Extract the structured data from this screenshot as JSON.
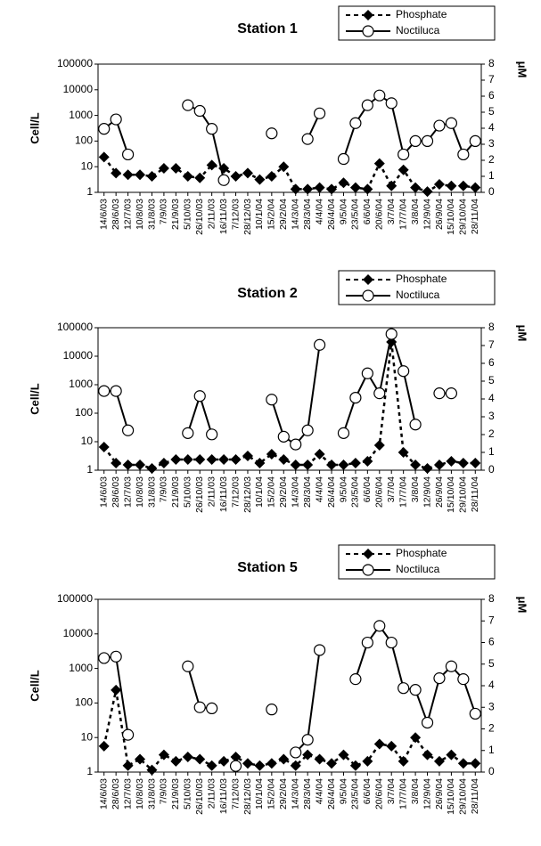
{
  "chart_data": [
    {
      "type": "line",
      "title": "Station 1",
      "ylabel": "Cell/L",
      "y2label": "μM",
      "yscale": "log",
      "ylim": [
        1,
        100000
      ],
      "yticks": [
        1,
        10,
        100,
        1000,
        10000,
        100000
      ],
      "y2lim": [
        0,
        8
      ],
      "y2ticks": [
        0,
        1,
        2,
        3,
        4,
        5,
        6,
        7,
        8
      ],
      "categories": [
        "14/6/03",
        "28/6/03",
        "12/7/03",
        "10/8/03",
        "31/8/03",
        "7/9/03",
        "21/9/03",
        "5/10/03",
        "26/10/03",
        "2/11/03",
        "16/11/03",
        "7/12/03",
        "28/12/03",
        "10/1/04",
        "15/2/04",
        "29/2/04",
        "14/3/04",
        "28/3/04",
        "4/4/04",
        "26/4/04",
        "9/5/04",
        "23/5/04",
        "6/6/04",
        "20/6/04",
        "3/7/04",
        "17/7/04",
        "3/8/04",
        "12/9/04",
        "26/9/04",
        "15/10/04",
        "29/10/04",
        "28/11/04"
      ],
      "series": [
        {
          "name": "Phosphate",
          "axis": "y2",
          "color": "#000000",
          "line_style": "dashed",
          "marker": "diamond",
          "values": [
            2.2,
            1.2,
            1.1,
            1.1,
            1.0,
            1.5,
            1.5,
            1.0,
            0.9,
            1.7,
            1.5,
            1.0,
            1.2,
            0.8,
            1.0,
            1.6,
            0.2,
            0.2,
            0.3,
            0.2,
            0.6,
            0.3,
            0.2,
            1.8,
            0.4,
            1.4,
            0.3,
            0.05,
            0.5,
            0.4,
            0.4,
            0.3
          ]
        },
        {
          "name": "Noctiluca",
          "color": "#000000",
          "line_style": "solid",
          "marker": "circle",
          "values": [
            300,
            700,
            30,
            null,
            null,
            null,
            null,
            2500,
            1500,
            300,
            3,
            null,
            null,
            null,
            200,
            null,
            null,
            120,
            1200,
            null,
            20,
            500,
            2500,
            6000,
            3000,
            30,
            100,
            100,
            400,
            500,
            30,
            100
          ]
        }
      ]
    },
    {
      "type": "line",
      "title": "Station 2",
      "ylabel": "Cell/L",
      "y2label": "μM",
      "yscale": "log",
      "ylim": [
        1,
        100000
      ],
      "yticks": [
        1,
        10,
        100,
        1000,
        10000,
        100000
      ],
      "y2lim": [
        0,
        8
      ],
      "y2ticks": [
        0,
        1,
        2,
        3,
        4,
        5,
        6,
        7,
        8
      ],
      "categories": [
        "14/6/03",
        "28/6/03",
        "12/7/03",
        "10/8/03",
        "31/8/03",
        "7/9/03",
        "21/9/03",
        "5/10/03",
        "26/10/03",
        "2/11/03",
        "16/11/03",
        "7/12/03",
        "28/12/03",
        "10/1/04",
        "15/2/04",
        "29/2/04",
        "14/3/04",
        "28/3/04",
        "4/4/04",
        "26/4/04",
        "9/5/04",
        "23/5/04",
        "6/6/04",
        "20/6/04",
        "3/7/04",
        "17/7/04",
        "3/8/04",
        "12/9/04",
        "26/9/04",
        "15/10/04",
        "29/10/04",
        "28/11/04"
      ],
      "series": [
        {
          "name": "Phosphate",
          "axis": "y2",
          "color": "#000000",
          "line_style": "dashed",
          "marker": "diamond",
          "values": [
            1.3,
            0.4,
            0.3,
            0.3,
            0.1,
            0.4,
            0.6,
            0.6,
            0.6,
            0.6,
            0.6,
            0.6,
            0.8,
            0.4,
            0.9,
            0.6,
            0.3,
            0.3,
            0.9,
            0.3,
            0.3,
            0.4,
            0.5,
            1.4,
            7.2,
            1.0,
            0.3,
            0.1,
            0.3,
            0.5,
            0.4,
            0.4
          ]
        },
        {
          "name": "Noctiluca",
          "color": "#000000",
          "line_style": "solid",
          "marker": "circle",
          "values": [
            600,
            600,
            25,
            null,
            null,
            null,
            null,
            20,
            400,
            18,
            null,
            null,
            null,
            null,
            300,
            15,
            8,
            25,
            25000,
            null,
            20,
            350,
            2500,
            500,
            60000,
            3000,
            40,
            null,
            500,
            500,
            null,
            null
          ]
        }
      ]
    },
    {
      "type": "line",
      "title": "Station 5",
      "ylabel": "Cell/L",
      "y2label": "μM",
      "yscale": "log",
      "ylim": [
        1,
        100000
      ],
      "yticks": [
        1,
        10,
        100,
        1000,
        10000,
        100000
      ],
      "y2lim": [
        0,
        8
      ],
      "y2ticks": [
        0,
        1,
        2,
        3,
        4,
        5,
        6,
        7,
        8
      ],
      "categories": [
        "14/6/03",
        "28/6/03",
        "12/7/03",
        "10/8/03",
        "31/8/03",
        "7/9/03",
        "21/9/03",
        "5/10/03",
        "26/10/03",
        "2/11/03",
        "16/11/03",
        "7/12/03",
        "28/12/03",
        "10/1/04",
        "15/2/04",
        "29/2/04",
        "14/3/04",
        "28/3/04",
        "4/4/04",
        "26/4/04",
        "9/5/04",
        "23/5/04",
        "6/6/04",
        "20/6/04",
        "3/7/04",
        "17/7/04",
        "3/8/04",
        "12/9/04",
        "26/9/04",
        "15/10/04",
        "29/10/04",
        "28/11/04"
      ],
      "series": [
        {
          "name": "Phosphate",
          "axis": "y2",
          "color": "#000000",
          "line_style": "dashed",
          "marker": "diamond",
          "values": [
            1.2,
            3.8,
            0.3,
            0.6,
            0.1,
            0.8,
            0.5,
            0.7,
            0.6,
            0.3,
            0.5,
            0.7,
            0.4,
            0.3,
            0.4,
            0.6,
            0.3,
            0.8,
            0.6,
            0.4,
            0.8,
            0.3,
            0.5,
            1.3,
            1.2,
            0.5,
            1.6,
            0.8,
            0.5,
            0.8,
            0.4,
            0.4
          ]
        },
        {
          "name": "Noctiluca",
          "color": "#000000",
          "line_style": "solid",
          "marker": "circle",
          "values": [
            2000,
            2200,
            12,
            null,
            null,
            null,
            null,
            1150,
            75,
            70,
            null,
            1.5,
            null,
            null,
            65,
            null,
            3.7,
            8.6,
            3400,
            null,
            null,
            490,
            5600,
            17000,
            5600,
            270,
            240,
            27,
            520,
            1150,
            490,
            49
          ]
        }
      ]
    }
  ]
}
